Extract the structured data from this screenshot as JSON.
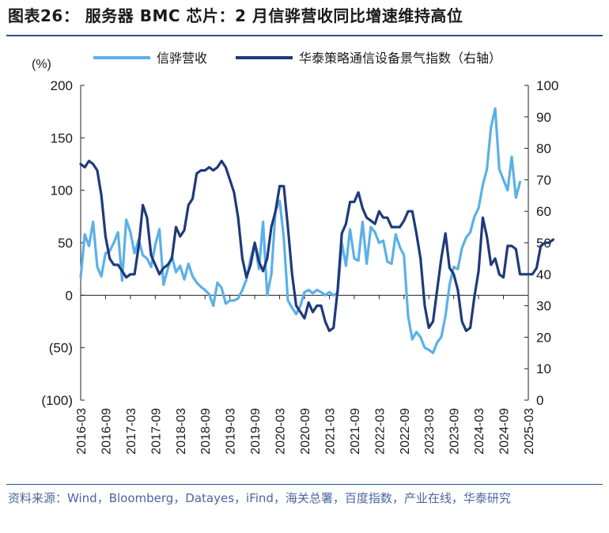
{
  "title": "图表26：  服务器 BMC 芯片：2 月信骅营收同比增速维持高位",
  "source": "资料来源：Wind，Bloomberg，Datayes，iFind，海关总署，百度指数，产业在线，华泰研究",
  "colors": {
    "left_series": "#5bb0e8",
    "right_series": "#1f3a7a",
    "rule": "#2a4d8f"
  },
  "chart_data": {
    "type": "line",
    "left_axis_label": "(%)",
    "left_ylim": [
      -100,
      200
    ],
    "left_ticks": [
      "200",
      "150",
      "100",
      "50",
      "0",
      "(50)",
      "(100)"
    ],
    "left_tick_values": [
      200,
      150,
      100,
      50,
      0,
      -50,
      -100
    ],
    "right_ylim": [
      0,
      100
    ],
    "right_ticks": [
      "100",
      "90",
      "80",
      "70",
      "60",
      "50",
      "40",
      "30",
      "20",
      "10",
      "0"
    ],
    "right_tick_values": [
      100,
      90,
      80,
      70,
      60,
      50,
      40,
      30,
      20,
      10,
      0
    ],
    "x_ticks": [
      "2016-03",
      "2016-09",
      "2017-03",
      "2017-09",
      "2018-03",
      "2018-09",
      "2019-03",
      "2019-09",
      "2020-03",
      "2020-09",
      "2021-03",
      "2021-09",
      "2022-03",
      "2022-09",
      "2023-03",
      "2023-09",
      "2024-03",
      "2024-09",
      "2025-03"
    ],
    "legend": "top",
    "series": [
      {
        "name": "信骅营收",
        "axis": "left",
        "start": "2016-03",
        "values": [
          17,
          58,
          47,
          70,
          27,
          18,
          40,
          42,
          50,
          60,
          14,
          72,
          60,
          40,
          53,
          38,
          35,
          27,
          48,
          63,
          10,
          25,
          37,
          22,
          28,
          15,
          30,
          18,
          12,
          8,
          5,
          1,
          -10,
          12,
          7,
          -8,
          -5,
          -5,
          -3,
          5,
          15,
          35,
          50,
          25,
          70,
          0,
          20,
          80,
          90,
          55,
          -5,
          -12,
          -18,
          -10,
          3,
          5,
          2,
          5,
          3,
          0,
          3,
          0,
          2,
          50,
          28,
          63,
          35,
          33,
          70,
          30,
          65,
          60,
          50,
          52,
          32,
          30,
          58,
          46,
          38,
          -20,
          -42,
          -35,
          -40,
          -50,
          -52,
          -55,
          -45,
          -40,
          -20,
          10,
          27,
          25,
          45,
          55,
          60,
          75,
          83,
          105,
          120,
          160,
          178,
          120,
          110,
          100,
          132,
          93,
          108
        ],
        "points_estimated_from_gridlines": true
      },
      {
        "name": "华泰策略通信设备景气指数（右轴）",
        "axis": "right",
        "start": "2016-03",
        "values": [
          75,
          74,
          76,
          75,
          73,
          65,
          52,
          45,
          43,
          43,
          41,
          39,
          40,
          40,
          49,
          62,
          58,
          46,
          43,
          40,
          42,
          43,
          45,
          55,
          52,
          54,
          62,
          64,
          72,
          73,
          73,
          74,
          73,
          74,
          76,
          74,
          70,
          66,
          58,
          45,
          39,
          43,
          50,
          44,
          41,
          45,
          55,
          60,
          68,
          68,
          55,
          40,
          30,
          28,
          26,
          31,
          28,
          30,
          30,
          25,
          22,
          23,
          35,
          53,
          56,
          63,
          63,
          66,
          61,
          58,
          57,
          56,
          60,
          58,
          58,
          55,
          55,
          55,
          57,
          60,
          60,
          53,
          45,
          30,
          23,
          25,
          35,
          45,
          53,
          42,
          40,
          35,
          25,
          22,
          23,
          33,
          41,
          58,
          52,
          43,
          45,
          40,
          39,
          49,
          49,
          48,
          40,
          40,
          40,
          40,
          42,
          49,
          50,
          50,
          51
        ]
      }
    ],
    "xlabel": "",
    "ylabel": "(%)"
  }
}
